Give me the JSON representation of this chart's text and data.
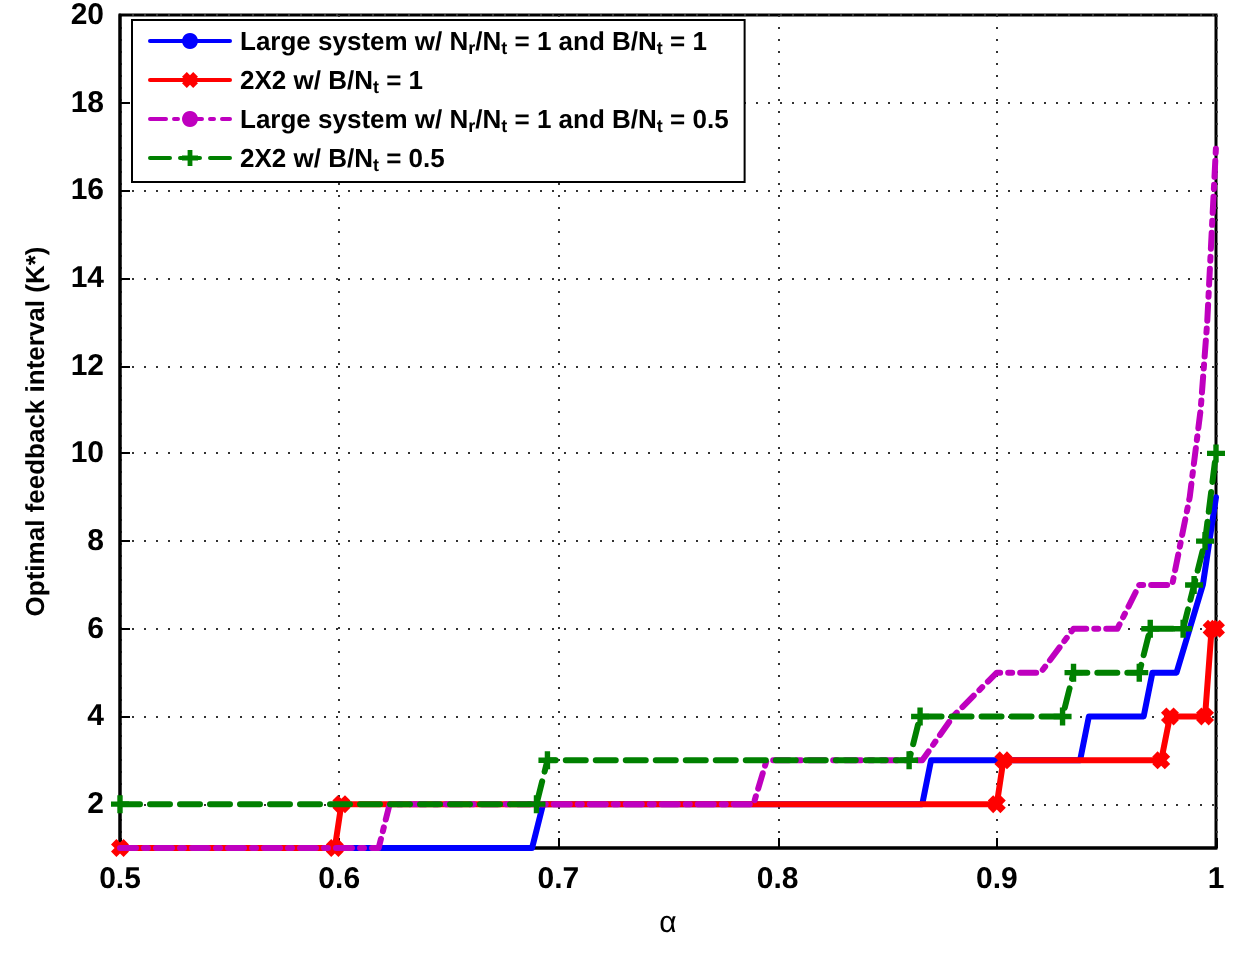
{
  "chart_data": {
    "type": "line",
    "xlabel": "α",
    "ylabel": "Optimal feedback interval (K*)",
    "xlim": [
      0.5,
      1
    ],
    "xticks": [
      0.5,
      0.6,
      0.7,
      0.8,
      0.9,
      1
    ],
    "ylim": [
      1,
      20
    ],
    "yticks": [
      2,
      4,
      6,
      8,
      10,
      12,
      14,
      16,
      18,
      20
    ],
    "grid": true,
    "legend": "top left",
    "series": [
      {
        "name": "Large system w/ N$_{r}$/N$_{t}$ = 1 and B/N$_{t}$ = 1",
        "color": "#0000ff",
        "line_style": "solid",
        "marker": "none",
        "x": [
          0.5,
          0.688,
          0.693,
          0.866,
          0.87,
          0.938,
          0.942,
          0.967,
          0.971,
          0.982,
          0.994,
          1
        ],
        "values": [
          1,
          1,
          2,
          2,
          3,
          3,
          4,
          4,
          5,
          5,
          7,
          9
        ]
      },
      {
        "name": "2X2 w/ B/N$_{t}$ = 1",
        "color": "#ff0000",
        "line_style": "solid",
        "marker": "cross",
        "x": [
          0.5,
          0.598,
          0.601,
          0.9,
          0.903,
          0.975,
          0.979,
          0.995,
          0.998,
          1
        ],
        "values": [
          1,
          1,
          2,
          2,
          3,
          3,
          4,
          4,
          6,
          6
        ]
      },
      {
        "name": "Large system w/ N$_{r}$/N$_{t}$ = 1 and B/N$_{t}$ = 0.5",
        "color": "#bf00bf",
        "line_style": "dashed",
        "marker": "none",
        "x": [
          0.5,
          0.618,
          0.623,
          0.789,
          0.795,
          0.866,
          0.88,
          0.9,
          0.92,
          0.935,
          0.955,
          0.965,
          0.98,
          0.988,
          0.993,
          0.996,
          1
        ],
        "values": [
          1,
          1,
          2,
          2,
          3,
          3,
          4,
          5,
          5,
          6,
          6,
          7,
          7,
          9,
          11,
          13,
          17
        ]
      },
      {
        "name": "2X2 w/ B/N$_{t}$ = 0.5",
        "color": "#008000",
        "line_style": "dashed",
        "marker": "cross",
        "x": [
          0.5,
          0.69,
          0.695,
          0.86,
          0.865,
          0.93,
          0.935,
          0.965,
          0.97,
          0.985,
          0.99,
          0.995,
          1
        ],
        "values": [
          2,
          2,
          3,
          3,
          4,
          4,
          5,
          5,
          6,
          6,
          7,
          8,
          10
        ]
      }
    ]
  }
}
